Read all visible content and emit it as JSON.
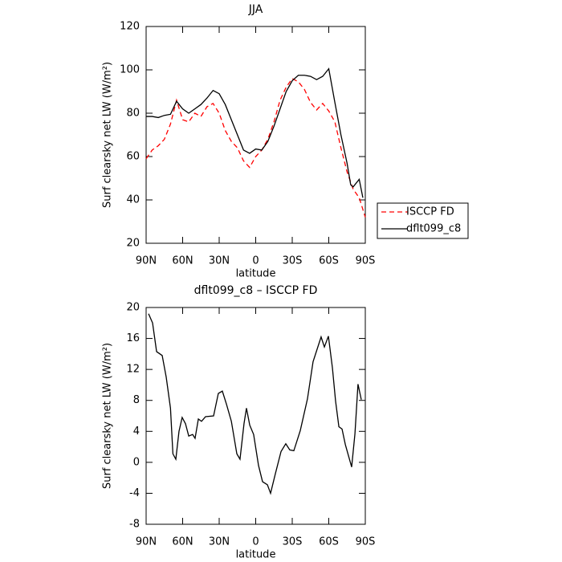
{
  "chart_data": [
    {
      "type": "line",
      "title": "JJA",
      "xlabel": "latitude",
      "ylabel": "Surf clearsky net LW (W/m²)",
      "xlim": [
        90,
        -90
      ],
      "xticks": [
        {
          "value": 90,
          "label": "90N"
        },
        {
          "value": 60,
          "label": "60N"
        },
        {
          "value": 30,
          "label": "30N"
        },
        0,
        {
          "value": -30,
          "label": "30S"
        },
        {
          "value": -60,
          "label": "60S"
        },
        {
          "value": -90,
          "label": "90S"
        }
      ],
      "ylim": [
        20,
        120
      ],
      "yticks": [
        20,
        40,
        60,
        80,
        100,
        120
      ],
      "legend": "outside-right",
      "series": [
        {
          "name": "ISCCP FD",
          "color": "#ff0000",
          "dash": true,
          "x": [
            90,
            85,
            80,
            75,
            70,
            65,
            60,
            55,
            50,
            45,
            40,
            35,
            30,
            25,
            20,
            15,
            10,
            5,
            0,
            -5,
            -10,
            -15,
            -20,
            -25,
            -30,
            -35,
            -40,
            -45,
            -50,
            -55,
            -60,
            -65,
            -70,
            -75,
            -80,
            -85,
            -90
          ],
          "values": [
            59,
            63,
            65,
            68,
            75,
            86,
            77,
            76,
            80,
            78.5,
            83,
            84.5,
            80,
            72,
            67,
            64,
            58,
            55,
            60,
            63,
            68,
            76,
            86,
            92,
            96,
            94.5,
            91,
            85,
            81.5,
            84.5,
            81,
            76,
            64,
            53,
            45,
            41,
            32
          ]
        },
        {
          "name": "dflt099_c8",
          "color": "#000000",
          "dash": false,
          "x": [
            90,
            85,
            80,
            75,
            70,
            65,
            60,
            55,
            50,
            45,
            40,
            35,
            30,
            25,
            20,
            15,
            10,
            5,
            0,
            -5,
            -10,
            -15,
            -20,
            -25,
            -30,
            -35,
            -40,
            -45,
            -50,
            -55,
            -60,
            -65,
            -70,
            -75,
            -78,
            -80,
            -85,
            -88
          ],
          "values": [
            78.5,
            78.5,
            78,
            79,
            79.5,
            85.5,
            82,
            80,
            82,
            84,
            87,
            90.5,
            89,
            84,
            77,
            70,
            63,
            61.5,
            63.5,
            63,
            67,
            74,
            82,
            90,
            95,
            97.5,
            97.5,
            97,
            95.5,
            97,
            100.5,
            85,
            70,
            57,
            47,
            46,
            49.5,
            41
          ]
        }
      ]
    },
    {
      "type": "line",
      "title": "dflt099_c8 – ISCCP FD",
      "xlabel": "latitude",
      "ylabel": "Surf clearsky net LW (W/m²)",
      "xlim": [
        90,
        -90
      ],
      "xticks": [
        {
          "value": 90,
          "label": "90N"
        },
        {
          "value": 60,
          "label": "60N"
        },
        {
          "value": 30,
          "label": "30N"
        },
        0,
        {
          "value": -30,
          "label": "30S"
        },
        {
          "value": -60,
          "label": "60S"
        },
        {
          "value": -90,
          "label": "90S"
        }
      ],
      "ylim": [
        -8,
        20
      ],
      "yticks": [
        -8,
        -4,
        0,
        4,
        8,
        12,
        16,
        20
      ],
      "color": "#000000",
      "x": [
        88,
        84.7,
        81.4,
        76.8,
        73.5,
        70,
        68,
        65.6,
        63,
        60.4,
        57.7,
        55,
        51.8,
        49.8,
        47.1,
        44.5,
        41.2,
        34.6,
        30.7,
        27.4,
        24,
        20,
        15.5,
        12.9,
        9.6,
        7.6,
        4.9,
        1.7,
        -2.3,
        -5.6,
        -9.6,
        -12.2,
        -16.1,
        -20.8,
        -24.7,
        -28,
        -31.3,
        -36.6,
        -42.5,
        -47.1,
        -53.7,
        -56.4,
        -59.7,
        -63,
        -65.6,
        -68.3,
        -70.9,
        -73.6,
        -76.1,
        -78.8,
        -81.5,
        -84,
        -86.7
      ],
      "values": [
        19.2,
        18,
        14.3,
        13.8,
        11,
        7,
        1.1,
        0.4,
        4,
        5.8,
        5,
        3.4,
        3.6,
        3.1,
        5.6,
        5.3,
        5.9,
        6,
        8.9,
        9.2,
        7.5,
        5.3,
        1.1,
        0.4,
        5,
        7,
        4.8,
        3.6,
        -0.4,
        -2.5,
        -2.9,
        -4,
        -1.5,
        1.4,
        2.4,
        1.6,
        1.5,
        4.1,
        8.2,
        13,
        16.2,
        14.9,
        16.3,
        12.2,
        7.9,
        4.6,
        4.3,
        2.3,
        0.9,
        -0.6,
        3.7,
        10.1,
        8.1
      ]
    }
  ]
}
